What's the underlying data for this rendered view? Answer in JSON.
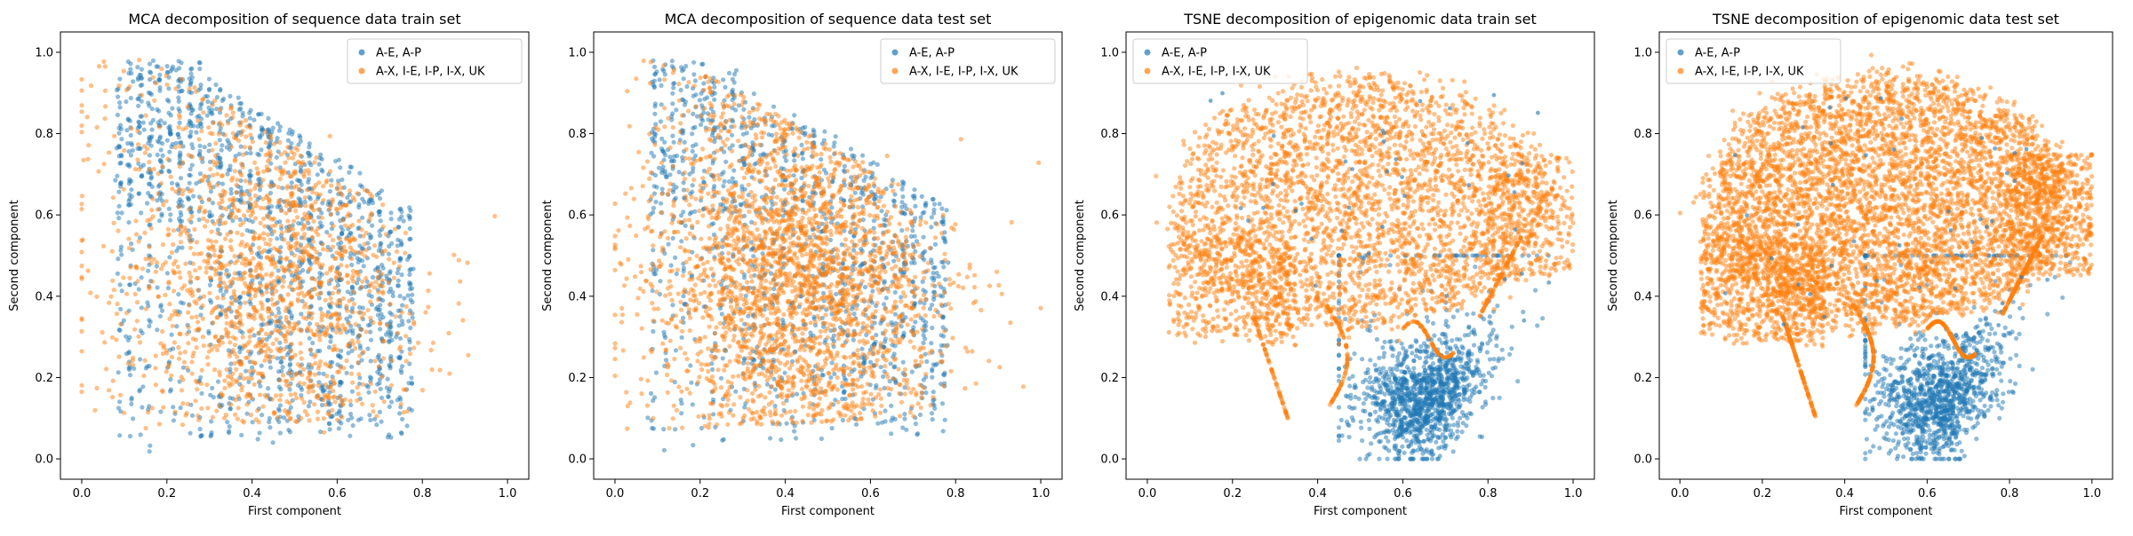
{
  "figure": {
    "legend_labels": [
      "A-E, A-P",
      "A-X, I-E, I-P, I-X, UK"
    ],
    "colors": {
      "series_a": "#1f77b4",
      "series_b": "#ff7f0e"
    },
    "point_alpha": 0.5
  },
  "chart_data": [
    {
      "type": "scatter",
      "title": "MCA decomposition of sequence data train set",
      "xlabel": "First component",
      "ylabel": "Second component",
      "xlim": [
        -0.05,
        1.05
      ],
      "ylim": [
        -0.05,
        1.05
      ],
      "xticks": [
        "0.0",
        "0.2",
        "0.4",
        "0.6",
        "0.8",
        "1.0"
      ],
      "yticks": [
        "0.0",
        "0.2",
        "0.4",
        "0.6",
        "0.8",
        "1.0"
      ],
      "legend_position": "top-right",
      "series": [
        {
          "name": "A-E, A-P",
          "distribution": "vertical point columns between x≈0.08 and x≈0.78, upper-left heavy",
          "approx_points": 1600
        },
        {
          "name": "A-X, I-E, I-P, I-X, UK",
          "distribution": "broad cloud x≈0.0–0.97, y≈0.05–0.99, drawn over blue",
          "approx_points": 1500
        }
      ]
    },
    {
      "type": "scatter",
      "title": "MCA decomposition of sequence data test set",
      "xlabel": "First component",
      "ylabel": "Second component",
      "xlim": [
        -0.05,
        1.05
      ],
      "ylim": [
        -0.05,
        1.05
      ],
      "xticks": [
        "0.0",
        "0.2",
        "0.4",
        "0.6",
        "0.8",
        "1.0"
      ],
      "yticks": [
        "0.0",
        "0.2",
        "0.4",
        "0.6",
        "0.8",
        "1.0"
      ],
      "legend_position": "top-right",
      "series": [
        {
          "name": "A-E, A-P",
          "distribution": "vertical point columns between x≈0.08 and x≈0.78",
          "approx_points": 1300
        },
        {
          "name": "A-X, I-E, I-P, I-X, UK",
          "distribution": "dense orange cloud x≈0.0–1.0, y≈0.0–0.99, drawn over blue",
          "approx_points": 2600
        }
      ]
    },
    {
      "type": "scatter",
      "title": "TSNE decomposition of epigenomic data train set",
      "xlabel": "First component",
      "ylabel": "Second component",
      "xlim": [
        -0.05,
        1.05
      ],
      "ylim": [
        -0.05,
        1.05
      ],
      "xticks": [
        "0.0",
        "0.2",
        "0.4",
        "0.6",
        "0.8",
        "1.0"
      ],
      "yticks": [
        "0.0",
        "0.2",
        "0.4",
        "0.6",
        "0.8",
        "1.0"
      ],
      "legend_position": "top-left",
      "series": [
        {
          "name": "A-E, A-P",
          "distribution": "dense cluster around x≈0.55–0.9, y≈0.0–0.3, plus sparse points",
          "approx_points": 1300
        },
        {
          "name": "A-X, I-E, I-P, I-X, UK",
          "distribution": "large cloud x≈0.02–1.0, y≈0.1–1.0 with filaments at bottom-left",
          "approx_points": 4000
        }
      ]
    },
    {
      "type": "scatter",
      "title": "TSNE decomposition of epigenomic data test set",
      "xlabel": "First component",
      "ylabel": "Second component",
      "xlim": [
        -0.05,
        1.05
      ],
      "ylim": [
        -0.05,
        1.05
      ],
      "xticks": [
        "0.0",
        "0.2",
        "0.4",
        "0.6",
        "0.8",
        "1.0"
      ],
      "yticks": [
        "0.0",
        "0.2",
        "0.4",
        "0.6",
        "0.8",
        "1.0"
      ],
      "legend_position": "top-left",
      "series": [
        {
          "name": "A-E, A-P",
          "distribution": "dense cluster around x≈0.55–0.85, y≈0.0–0.3, plus sparse points",
          "approx_points": 1200
        },
        {
          "name": "A-X, I-E, I-P, I-X, UK",
          "distribution": "very dense cloud x≈0.0–1.0, y≈0.1–1.0 with filaments at bottom-left",
          "approx_points": 6500
        }
      ]
    }
  ]
}
